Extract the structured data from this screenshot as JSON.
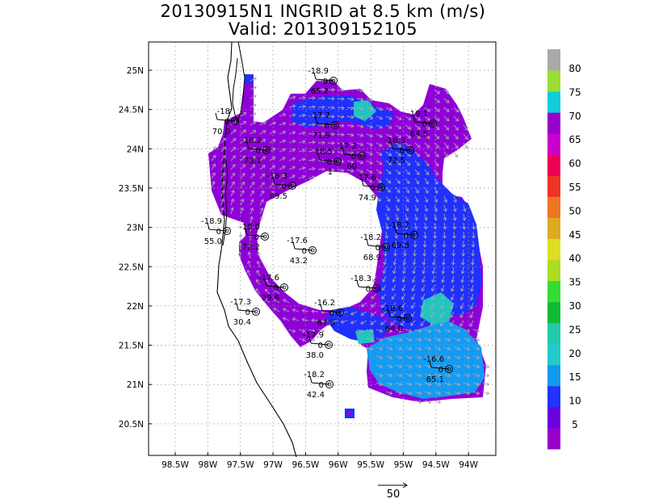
{
  "title": "20130915N1 INGRID at 8.5 km (m/s)",
  "subtitle": "Valid: 201309152105",
  "map": {
    "lon_ticks": [
      "98.5W",
      "98W",
      "97.5W",
      "97W",
      "96.5W",
      "96W",
      "95.5W",
      "95W",
      "94.5W",
      "94W"
    ],
    "lat_ticks": [
      "25N",
      "24.5N",
      "24N",
      "23.5N",
      "23N",
      "22.5N",
      "22N",
      "21.5N",
      "21N",
      "20.5N"
    ],
    "lon_range": [
      -98.8,
      -93.5
    ],
    "lat_range": [
      20.2,
      25.4
    ],
    "reference_vector_label": "50",
    "colors": {
      "coast": "#000000",
      "grid": "#9a9a9a",
      "wind_arrow": "#a8a8a8",
      "band_5": "#8f00d8",
      "band_10": "#2030ff",
      "band_15": "#139bf3",
      "band_20": "#21c4c0"
    }
  },
  "colorbar": {
    "labels": [
      "5",
      "10",
      "15",
      "20",
      "25",
      "30",
      "35",
      "40",
      "45",
      "50",
      "55",
      "60",
      "65",
      "70",
      "75",
      "80"
    ],
    "colors": [
      "#9900cc",
      "#6a00dd",
      "#2233ff",
      "#1199ee",
      "#22cccc",
      "#22ccaa",
      "#11bb33",
      "#33dd33",
      "#aadd22",
      "#dddd22",
      "#ddaa22",
      "#ee7722",
      "#ee3322",
      "#ee0055",
      "#cc00cc",
      "#9900cc",
      "#11ccdd",
      "#99dd33",
      "#aaaaaa"
    ]
  },
  "stations": [
    {
      "top": "-18.9",
      "mid": "0",
      "bottom": "65.2"
    },
    {
      "top": "-18",
      "mid": "0",
      "bottom": "70.0"
    },
    {
      "top": "-17.7",
      "mid": "0",
      "bottom": "71.9"
    },
    {
      "top": "-19.1",
      "mid": "0",
      "bottom": "64.5"
    },
    {
      "top": "-18.2",
      "mid": "0",
      "bottom": "73.1"
    },
    {
      "top": "-18.5",
      "mid": "0",
      "bottom": "1"
    },
    {
      "top": "-17.2",
      "mid": "0",
      "bottom": "60"
    },
    {
      "top": "-18.3",
      "mid": "0",
      "bottom": "72.5"
    },
    {
      "top": "-18.3",
      "mid": "0",
      "bottom": "69.5"
    },
    {
      "top": "-17.6",
      "mid": "0",
      "bottom": "74.9"
    },
    {
      "top": "-18.9",
      "mid": "0",
      "bottom": "55.0"
    },
    {
      "top": "-19.0",
      "mid": "0",
      "bottom": "72.2"
    },
    {
      "top": "-17.6",
      "mid": "0",
      "bottom": "43.2"
    },
    {
      "top": "-18.2",
      "mid": "0",
      "bottom": "68.9"
    },
    {
      "top": "-18.2",
      "mid": "0",
      "bottom": "69.8"
    },
    {
      "top": "-17.6",
      "mid": "0",
      "bottom": "39.6"
    },
    {
      "top": "-18.3",
      "mid": "0",
      "bottom": ""
    },
    {
      "top": "-17.3",
      "mid": "0",
      "bottom": "30.4"
    },
    {
      "top": "-16.2",
      "mid": "0",
      "bottom": "67.5"
    },
    {
      "top": "-18.6",
      "mid": "0",
      "bottom": "64.0"
    },
    {
      "top": "-17.9",
      "mid": "0",
      "bottom": "38.0"
    },
    {
      "top": "-16.6",
      "mid": "0",
      "bottom": "65.1"
    },
    {
      "top": "-18.2",
      "mid": "0",
      "bottom": "42.4"
    }
  ]
}
